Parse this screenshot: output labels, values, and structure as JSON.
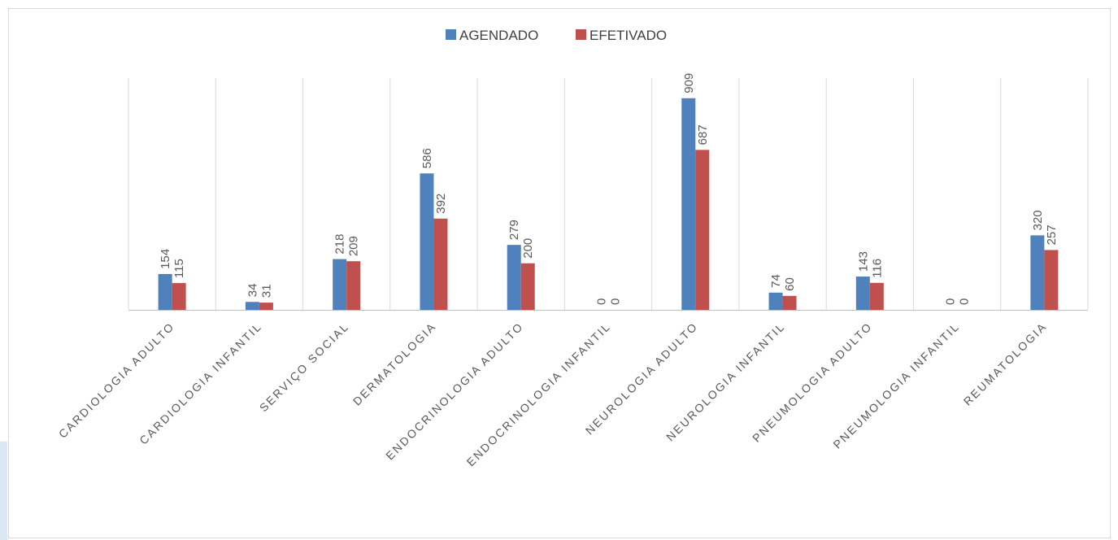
{
  "chart_data": {
    "type": "bar",
    "title": "",
    "xlabel": "",
    "ylabel": "",
    "categories": [
      "CARDIOLOGIA ADULTO",
      "CARDIOLOGIA INFANTIL",
      "SERVIÇO SOCIAL",
      "DERMATOLOGIA",
      "ENDOCRINOLOGIA ADULTO",
      "ENDOCRINOLOGIA INFANTIL",
      "NEUROLOGIA ADULTO",
      "NEUROLOGIA INFANTIL",
      "PNEUMOLOGIA ADULTO",
      "PNEUMOLOGIA INFANTIL",
      "REUMATOLOGIA"
    ],
    "series": [
      {
        "name": "AGENDADO",
        "color": "#4f81bd",
        "values": [
          154,
          34,
          218,
          586,
          279,
          0,
          909,
          74,
          143,
          0,
          320
        ]
      },
      {
        "name": "EFETIVADO",
        "color": "#c0504d",
        "values": [
          115,
          31,
          209,
          392,
          200,
          0,
          687,
          60,
          116,
          0,
          257
        ]
      }
    ],
    "ylim": [
      0,
      1000
    ],
    "grid": "vertical category separators",
    "legend_position": "top-center",
    "data_labels": "rotated -90"
  }
}
